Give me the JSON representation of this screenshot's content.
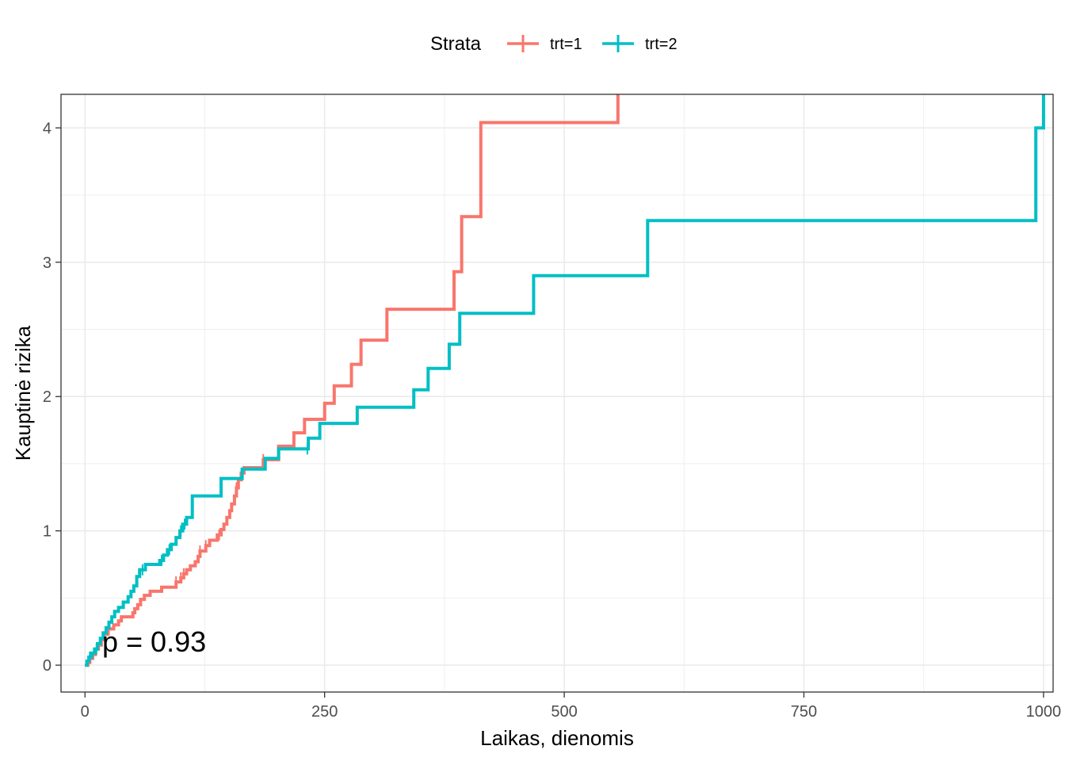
{
  "chart_data": {
    "type": "line",
    "step": true,
    "xlabel": "Laikas, dienomis",
    "ylabel": "Kauptinė rizika",
    "xlim": [
      -25,
      1010
    ],
    "ylim": [
      -0.2,
      4.25
    ],
    "x_ticks": [
      0,
      250,
      500,
      750,
      1000
    ],
    "y_ticks": [
      0,
      1,
      2,
      3,
      4
    ],
    "grid": true,
    "annotation": "p = 0.93",
    "annotation_pos": [
      18,
      0.1
    ],
    "legend": {
      "title": "Strata",
      "position": "top"
    },
    "series": [
      {
        "name": "trt=1",
        "color": "#F8766D",
        "points": [
          [
            0,
            0
          ],
          [
            3,
            0.02
          ],
          [
            5,
            0.05
          ],
          [
            8,
            0.08
          ],
          [
            11,
            0.12
          ],
          [
            14,
            0.15
          ],
          [
            17,
            0.19
          ],
          [
            20,
            0.23
          ],
          [
            24,
            0.27
          ],
          [
            30,
            0.3
          ],
          [
            35,
            0.33
          ],
          [
            38,
            0.36
          ],
          [
            50,
            0.39
          ],
          [
            52,
            0.42
          ],
          [
            55,
            0.45
          ],
          [
            58,
            0.49
          ],
          [
            62,
            0.52
          ],
          [
            68,
            0.55
          ],
          [
            80,
            0.58
          ],
          [
            95,
            0.62
          ],
          [
            100,
            0.65
          ],
          [
            103,
            0.68
          ],
          [
            106,
            0.71
          ],
          [
            110,
            0.74
          ],
          [
            115,
            0.77
          ],
          [
            118,
            0.81
          ],
          [
            120,
            0.85
          ],
          [
            126,
            0.89
          ],
          [
            130,
            0.93
          ],
          [
            138,
            0.97
          ],
          [
            142,
            1.01
          ],
          [
            145,
            1.05
          ],
          [
            148,
            1.1
          ],
          [
            151,
            1.15
          ],
          [
            153,
            1.2
          ],
          [
            156,
            1.26
          ],
          [
            158,
            1.32
          ],
          [
            160,
            1.38
          ],
          [
            163,
            1.43
          ],
          [
            166,
            1.47
          ],
          [
            186,
            1.53
          ],
          [
            202,
            1.63
          ],
          [
            218,
            1.73
          ],
          [
            229,
            1.83
          ],
          [
            250,
            1.95
          ],
          [
            260,
            2.08
          ],
          [
            278,
            2.24
          ],
          [
            288,
            2.42
          ],
          [
            315,
            2.65
          ],
          [
            385,
            2.93
          ],
          [
            393,
            3.34
          ],
          [
            413,
            4.04
          ],
          [
            556,
            4.25
          ]
        ],
        "censor_x": [
          25,
          95,
          100,
          103,
          120,
          126,
          140,
          158,
          186
        ]
      },
      {
        "name": "trt=2",
        "color": "#00BFC4",
        "points": [
          [
            0,
            0
          ],
          [
            2,
            0.03
          ],
          [
            4,
            0.06
          ],
          [
            7,
            0.09
          ],
          [
            10,
            0.12
          ],
          [
            13,
            0.16
          ],
          [
            16,
            0.2
          ],
          [
            19,
            0.24
          ],
          [
            22,
            0.28
          ],
          [
            25,
            0.32
          ],
          [
            28,
            0.36
          ],
          [
            31,
            0.4
          ],
          [
            35,
            0.43
          ],
          [
            40,
            0.47
          ],
          [
            45,
            0.51
          ],
          [
            48,
            0.55
          ],
          [
            51,
            0.59
          ],
          [
            54,
            0.66
          ],
          [
            57,
            0.71
          ],
          [
            63,
            0.75
          ],
          [
            78,
            0.78
          ],
          [
            82,
            0.82
          ],
          [
            86,
            0.86
          ],
          [
            90,
            0.9
          ],
          [
            95,
            0.95
          ],
          [
            99,
            1.0
          ],
          [
            102,
            1.05
          ],
          [
            106,
            1.1
          ],
          [
            112,
            1.26
          ],
          [
            142,
            1.39
          ],
          [
            164,
            1.46
          ],
          [
            188,
            1.54
          ],
          [
            202,
            1.61
          ],
          [
            233,
            1.69
          ],
          [
            245,
            1.8
          ],
          [
            284,
            1.92
          ],
          [
            343,
            2.05
          ],
          [
            358,
            2.21
          ],
          [
            380,
            2.39
          ],
          [
            391,
            2.62
          ],
          [
            468,
            2.9
          ],
          [
            587,
            3.31
          ],
          [
            992,
            4.0
          ],
          [
            1000,
            4.25
          ]
        ],
        "censor_x": [
          5,
          12,
          60,
          80,
          88,
          100,
          104,
          232
        ]
      }
    ]
  }
}
